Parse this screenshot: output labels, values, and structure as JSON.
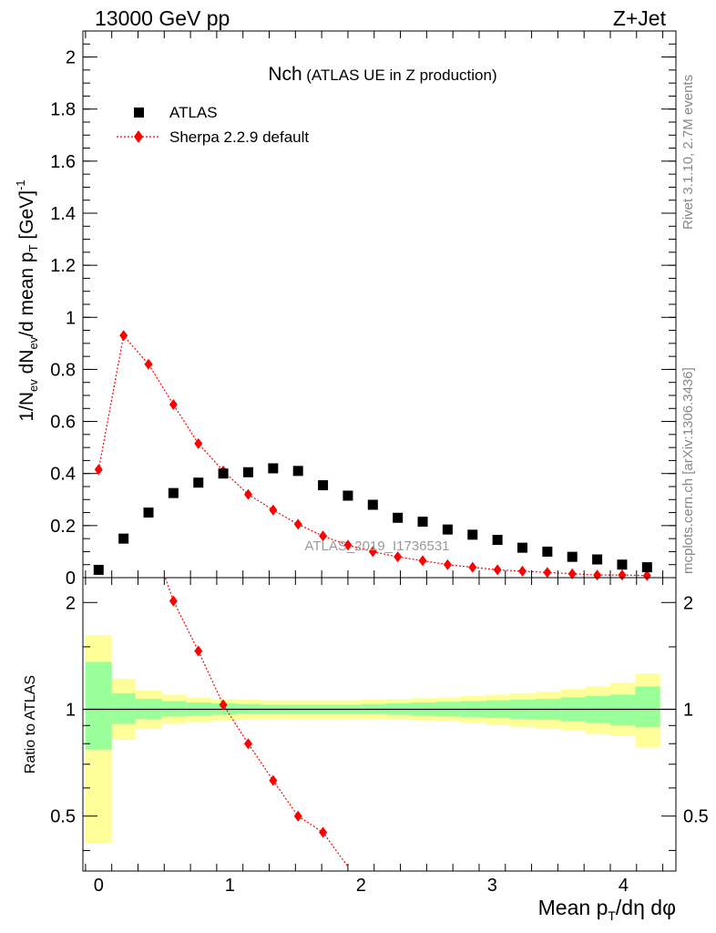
{
  "header": {
    "left": "13000 GeV pp",
    "right": "Z+Jet"
  },
  "side_notes": {
    "rivet": "Rivet 3.1.10,  2.7M events",
    "mcplots": "mcplots.cern.ch [arXiv:1306.3436]"
  },
  "chart_data": [
    {
      "type": "scatter",
      "title": "Nch",
      "subtitle": "(ATLAS UE in Z production)",
      "watermark": "ATLAS_2019_I1736531",
      "xlabel": "Mean p_T/dη dφ",
      "ylabel": "1/N_ev dN_ev/d mean p_T [GeV]^-1",
      "xlim": [
        -0.12,
        4.4
      ],
      "ylim": [
        0,
        2.1
      ],
      "xticks": [
        0,
        1,
        2,
        3,
        4
      ],
      "yticks": [
        0.2,
        0.4,
        0.6,
        0.8,
        1,
        1.2,
        1.4,
        1.6,
        1.8,
        2
      ],
      "ytick_labels": [
        "0.2",
        "0.4",
        "0.6",
        "0.8",
        "1",
        "1.2",
        "1.4",
        "1.6",
        "1.8",
        "2"
      ],
      "legend_position": "top-left",
      "series": [
        {
          "name": "ATLAS",
          "color": "#000000",
          "marker": "square",
          "x": [
            0,
            0.19,
            0.38,
            0.57,
            0.76,
            0.95,
            1.14,
            1.33,
            1.52,
            1.71,
            1.9,
            2.09,
            2.28,
            2.47,
            2.66,
            2.85,
            3.04,
            3.23,
            3.42,
            3.61,
            3.8,
            3.99,
            4.18
          ],
          "y": [
            0.03,
            0.15,
            0.25,
            0.325,
            0.365,
            0.4,
            0.405,
            0.42,
            0.41,
            0.355,
            0.315,
            0.28,
            0.23,
            0.215,
            0.185,
            0.165,
            0.145,
            0.115,
            0.1,
            0.08,
            0.07,
            0.05,
            0.04
          ]
        },
        {
          "name": "Sherpa 2.2.9 default",
          "color": "#ff0000",
          "marker": "diamond",
          "line": "dotted",
          "x": [
            0,
            0.19,
            0.38,
            0.57,
            0.76,
            0.95,
            1.14,
            1.33,
            1.52,
            1.71,
            1.9,
            2.09,
            2.28,
            2.47,
            2.66,
            2.85,
            3.04,
            3.23,
            3.42,
            3.61,
            3.8,
            3.99,
            4.18
          ],
          "y": [
            0.415,
            0.93,
            0.82,
            0.665,
            0.515,
            0.41,
            0.32,
            0.26,
            0.205,
            0.16,
            0.125,
            0.1,
            0.08,
            0.065,
            0.05,
            0.04,
            0.03,
            0.025,
            0.02,
            0.015,
            0.01,
            0.01,
            0.008
          ]
        }
      ]
    },
    {
      "type": "line",
      "ylabel": "Ratio to ATLAS",
      "xlim": [
        -0.12,
        4.4
      ],
      "ylim": [
        0.35,
        2.35
      ],
      "yscale": "log",
      "yticks": [
        0.5,
        1,
        2
      ],
      "ytick_labels": [
        "0.5",
        "1",
        "2"
      ],
      "reference": 1,
      "bands": {
        "edges": [
          -0.1,
          0.1,
          0.28,
          0.48,
          0.67,
          0.86,
          1.05,
          1.24,
          1.43,
          1.62,
          1.81,
          2.0,
          2.19,
          2.38,
          2.57,
          2.76,
          2.95,
          3.14,
          3.33,
          3.52,
          3.71,
          3.9,
          4.09,
          4.28
        ],
        "yellow_low": [
          0.42,
          0.82,
          0.88,
          0.91,
          0.92,
          0.93,
          0.935,
          0.94,
          0.94,
          0.94,
          0.94,
          0.94,
          0.935,
          0.93,
          0.925,
          0.915,
          0.905,
          0.89,
          0.88,
          0.87,
          0.85,
          0.84,
          0.78
        ],
        "yellow_high": [
          1.62,
          1.22,
          1.13,
          1.1,
          1.08,
          1.07,
          1.065,
          1.06,
          1.06,
          1.06,
          1.06,
          1.065,
          1.07,
          1.075,
          1.08,
          1.09,
          1.1,
          1.11,
          1.12,
          1.14,
          1.16,
          1.19,
          1.26
        ],
        "green_low": [
          0.77,
          0.91,
          0.94,
          0.955,
          0.96,
          0.965,
          0.97,
          0.97,
          0.97,
          0.97,
          0.97,
          0.97,
          0.965,
          0.96,
          0.955,
          0.95,
          0.945,
          0.94,
          0.935,
          0.925,
          0.915,
          0.9,
          0.89
        ],
        "green_high": [
          1.36,
          1.11,
          1.07,
          1.055,
          1.045,
          1.04,
          1.035,
          1.03,
          1.03,
          1.03,
          1.03,
          1.035,
          1.04,
          1.045,
          1.05,
          1.055,
          1.06,
          1.065,
          1.07,
          1.08,
          1.09,
          1.1,
          1.16
        ]
      },
      "series": [
        {
          "name": "Sherpa 2.2.9 default / ATLAS",
          "color": "#ff0000",
          "x": [
            0.57,
            0.76,
            0.95,
            1.14,
            1.33,
            1.52,
            1.71
          ],
          "y": [
            2.02,
            1.46,
            1.03,
            0.8,
            0.63,
            0.5,
            0.45
          ]
        }
      ]
    }
  ]
}
